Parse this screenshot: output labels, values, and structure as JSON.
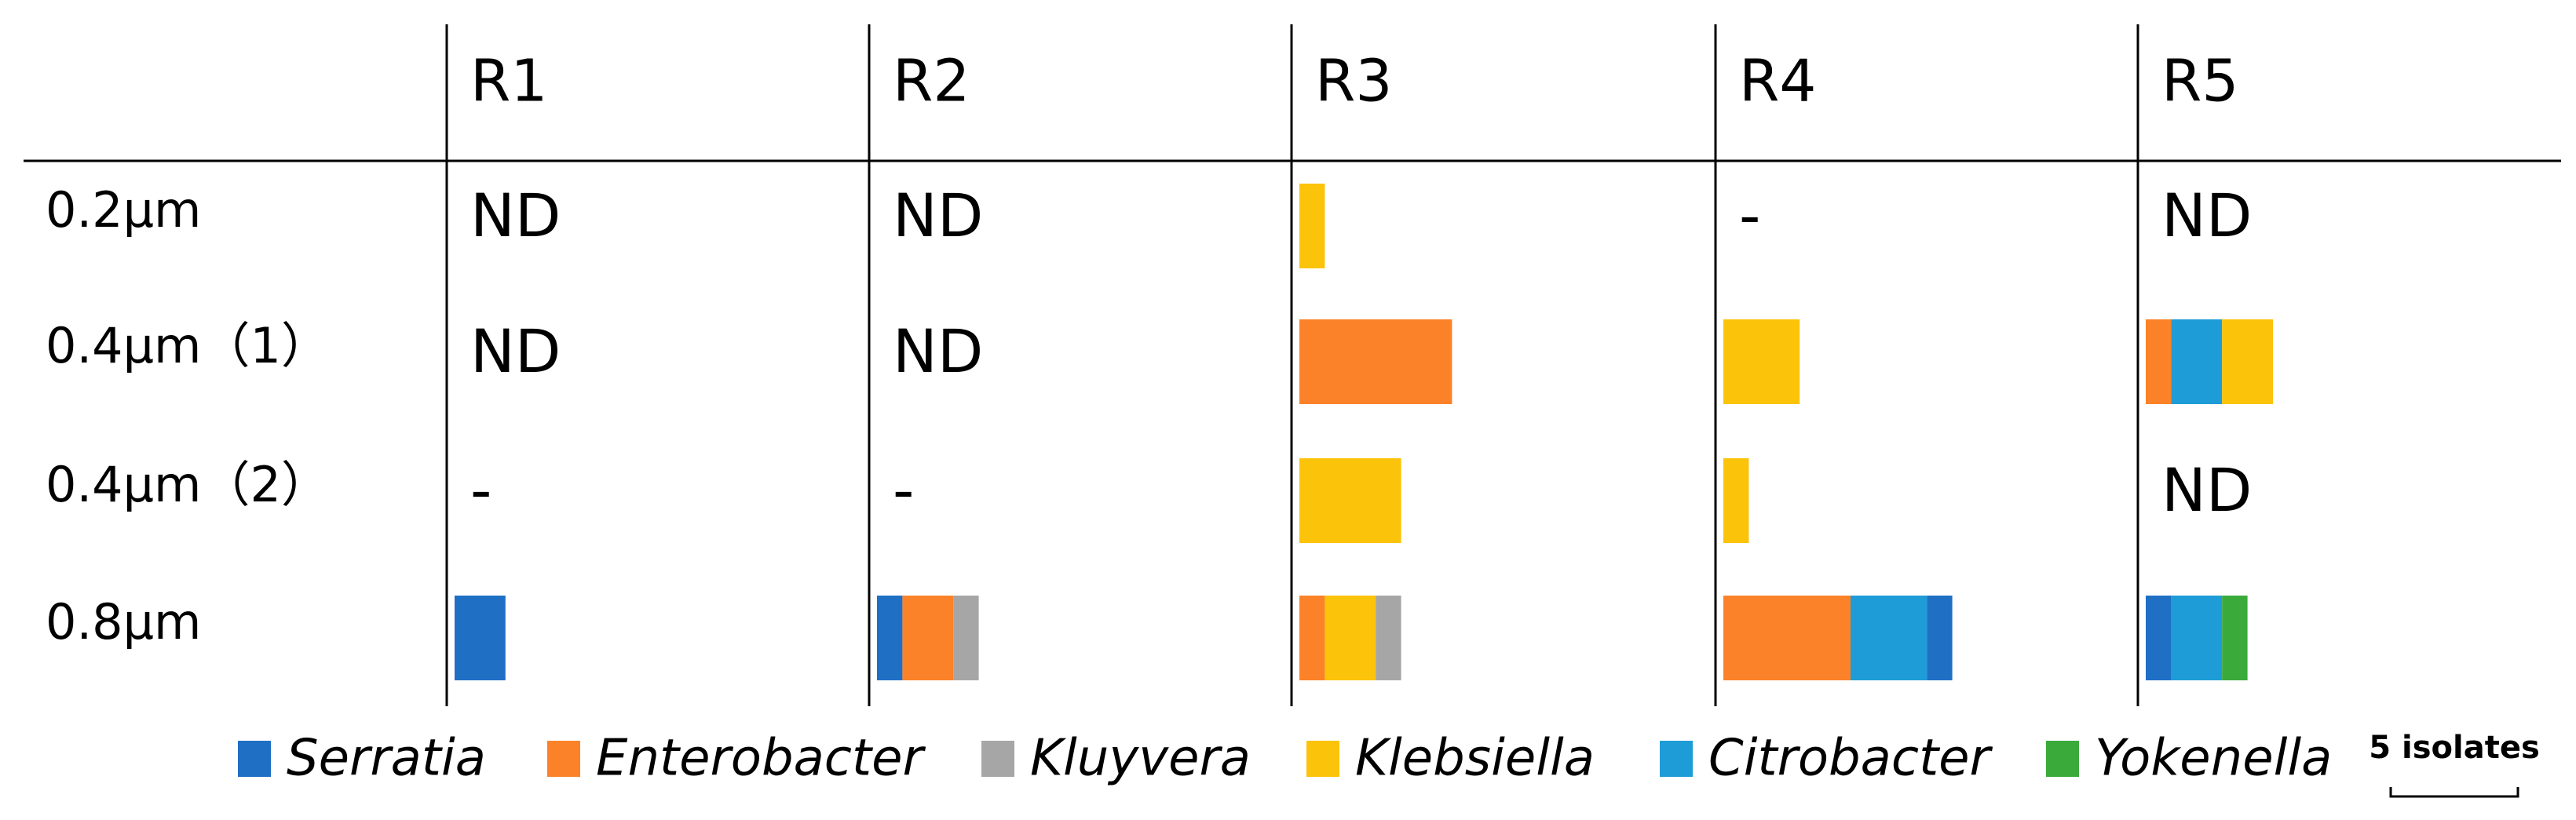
{
  "chart_data": {
    "type": "bar-grid",
    "columns": [
      "R1",
      "R2",
      "R3",
      "R4",
      "R5"
    ],
    "rows": [
      "0.2μm",
      "0.4μm（1）",
      "0.4μm（2）",
      "0.8μm"
    ],
    "series": [
      {
        "name": "Serratia",
        "color": "#1f6fc5"
      },
      {
        "name": "Enterobacter",
        "color": "#fb8228"
      },
      {
        "name": "Kluyvera",
        "color": "#a6a6a6"
      },
      {
        "name": "Klebsiella",
        "color": "#fcc30b"
      },
      {
        "name": "Citrobacter",
        "color": "#1e9cd7"
      },
      {
        "name": "Yokenella",
        "color": "#3aaa3a"
      }
    ],
    "cells": [
      [
        {
          "label": "ND"
        },
        {
          "label": "ND"
        },
        {
          "segments": [
            {
              "color": "#fcc30b",
              "value": 1
            }
          ]
        },
        {
          "label": "-"
        },
        {
          "label": "ND"
        }
      ],
      [
        {
          "label": "ND"
        },
        {
          "label": "ND"
        },
        {
          "segments": [
            {
              "color": "#fb8228",
              "value": 6
            }
          ]
        },
        {
          "segments": [
            {
              "color": "#fcc30b",
              "value": 3
            }
          ]
        },
        {
          "segments": [
            {
              "color": "#fb8228",
              "value": 1
            },
            {
              "color": "#1e9cd7",
              "value": 2
            },
            {
              "color": "#fcc30b",
              "value": 2
            }
          ]
        }
      ],
      [
        {
          "label": "-"
        },
        {
          "label": "-"
        },
        {
          "segments": [
            {
              "color": "#fcc30b",
              "value": 4
            }
          ]
        },
        {
          "segments": [
            {
              "color": "#fcc30b",
              "value": 1
            }
          ]
        },
        {
          "label": "ND"
        }
      ],
      [
        {
          "segments": [
            {
              "color": "#1f6fc5",
              "value": 2
            }
          ]
        },
        {
          "segments": [
            {
              "color": "#1f6fc5",
              "value": 1
            },
            {
              "color": "#fb8228",
              "value": 2
            },
            {
              "color": "#a6a6a6",
              "value": 1
            }
          ]
        },
        {
          "segments": [
            {
              "color": "#fb8228",
              "value": 1
            },
            {
              "color": "#fcc30b",
              "value": 2
            },
            {
              "color": "#a6a6a6",
              "value": 1
            }
          ]
        },
        {
          "segments": [
            {
              "color": "#fb8228",
              "value": 5
            },
            {
              "color": "#1e9cd7",
              "value": 3
            },
            {
              "color": "#1f6fc5",
              "value": 1
            }
          ]
        },
        {
          "segments": [
            {
              "color": "#1f6fc5",
              "value": 1
            },
            {
              "color": "#1e9cd7",
              "value": 2
            },
            {
              "color": "#3aaa3a",
              "value": 1
            }
          ]
        }
      ]
    ],
    "scale": {
      "label": "5 isolates",
      "value": 5
    }
  }
}
